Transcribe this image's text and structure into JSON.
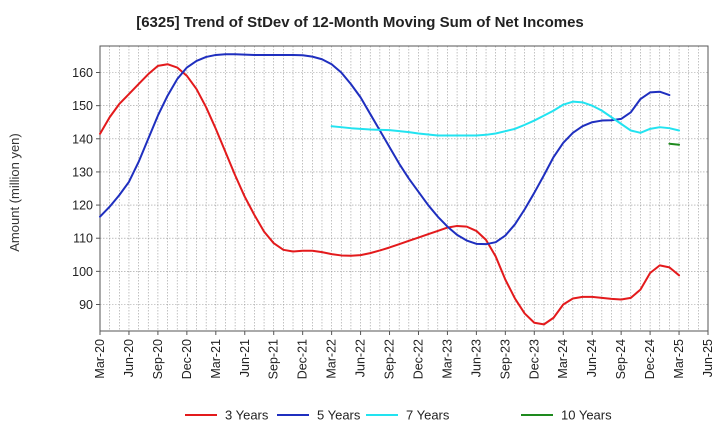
{
  "chart_data": {
    "type": "line",
    "title": "[6325]  Trend of StDev of 12-Month Moving Sum of Net Incomes",
    "ylabel": "Amount (million yen)",
    "xlabel": "",
    "ylim": [
      82,
      168
    ],
    "yticks": [
      90,
      100,
      110,
      120,
      130,
      140,
      150,
      160
    ],
    "x_start": "2020-03",
    "x_end": "2025-06",
    "xticks": [
      "Mar-20",
      "Jun-20",
      "Sep-20",
      "Dec-20",
      "Mar-21",
      "Jun-21",
      "Sep-21",
      "Dec-21",
      "Mar-22",
      "Jun-22",
      "Sep-22",
      "Dec-22",
      "Mar-23",
      "Jun-23",
      "Sep-23",
      "Dec-23",
      "Mar-24",
      "Jun-24",
      "Sep-24",
      "Dec-24",
      "Mar-25",
      "Jun-25"
    ],
    "grid": true,
    "legend_position": "bottom",
    "series": [
      {
        "name": "3 Years",
        "color": "#e31a1c",
        "x": [
          "2020-03",
          "2020-04",
          "2020-05",
          "2020-06",
          "2020-07",
          "2020-08",
          "2020-09",
          "2020-10",
          "2020-11",
          "2020-12",
          "2021-01",
          "2021-02",
          "2021-03",
          "2021-04",
          "2021-05",
          "2021-06",
          "2021-07",
          "2021-08",
          "2021-09",
          "2021-10",
          "2021-11",
          "2021-12",
          "2022-01",
          "2022-02",
          "2022-03",
          "2022-04",
          "2022-05",
          "2022-06",
          "2022-07",
          "2022-08",
          "2022-09",
          "2022-10",
          "2022-11",
          "2022-12",
          "2023-01",
          "2023-02",
          "2023-03",
          "2023-04",
          "2023-05",
          "2023-06",
          "2023-07",
          "2023-08",
          "2023-09",
          "2023-10",
          "2023-11",
          "2023-12",
          "2024-01",
          "2024-02",
          "2024-03",
          "2024-04",
          "2024-05",
          "2024-06",
          "2024-07",
          "2024-08",
          "2024-09",
          "2024-10",
          "2024-11",
          "2024-12",
          "2025-01",
          "2025-02",
          "2025-03"
        ],
        "values": [
          141.5,
          146.5,
          150.5,
          153.5,
          156.5,
          159.5,
          162.0,
          162.5,
          161.5,
          159.0,
          155.0,
          149.5,
          143.0,
          136.0,
          129.0,
          122.5,
          117.0,
          112.0,
          108.5,
          106.5,
          106.0,
          106.2,
          106.2,
          105.8,
          105.2,
          104.8,
          104.7,
          104.9,
          105.5,
          106.3,
          107.2,
          108.2,
          109.2,
          110.2,
          111.2,
          112.2,
          113.2,
          113.7,
          113.5,
          112.2,
          109.5,
          104.5,
          97.5,
          91.8,
          87.3,
          84.5,
          84.0,
          86.0,
          90.0,
          91.8,
          92.3,
          92.3,
          92.0,
          91.7,
          91.5,
          92.0,
          94.5,
          99.5,
          101.8,
          101.2,
          98.8
        ]
      },
      {
        "name": "5 Years",
        "color": "#1f2fbf",
        "x": [
          "2020-03",
          "2020-04",
          "2020-05",
          "2020-06",
          "2020-07",
          "2020-08",
          "2020-09",
          "2020-10",
          "2020-11",
          "2020-12",
          "2021-01",
          "2021-02",
          "2021-03",
          "2021-04",
          "2021-05",
          "2021-06",
          "2021-07",
          "2021-08",
          "2021-09",
          "2021-10",
          "2021-11",
          "2021-12",
          "2022-01",
          "2022-02",
          "2022-03",
          "2022-04",
          "2022-05",
          "2022-06",
          "2022-07",
          "2022-08",
          "2022-09",
          "2022-10",
          "2022-11",
          "2022-12",
          "2023-01",
          "2023-02",
          "2023-03",
          "2023-04",
          "2023-05",
          "2023-06",
          "2023-07",
          "2023-08",
          "2023-09",
          "2023-10",
          "2023-11",
          "2023-12",
          "2024-01",
          "2024-02",
          "2024-03",
          "2024-04",
          "2024-05",
          "2024-06",
          "2024-07",
          "2024-08",
          "2024-09",
          "2024-10",
          "2024-11",
          "2024-12",
          "2025-01",
          "2025-02",
          "2025-03"
        ],
        "values": [
          116.5,
          119.5,
          123.0,
          127.0,
          133.0,
          140.0,
          147.0,
          153.0,
          158.0,
          161.5,
          163.5,
          164.7,
          165.3,
          165.5,
          165.5,
          165.4,
          165.3,
          165.3,
          165.3,
          165.3,
          165.3,
          165.2,
          164.8,
          164.0,
          162.5,
          160.0,
          156.5,
          152.5,
          147.5,
          142.5,
          137.5,
          132.5,
          128.0,
          124.0,
          120.0,
          116.5,
          113.5,
          111.0,
          109.3,
          108.3,
          108.2,
          108.8,
          110.8,
          114.2,
          118.7,
          123.7,
          129.0,
          134.5,
          138.8,
          141.8,
          143.8,
          145.0,
          145.5,
          145.6,
          146.0,
          148.0,
          152.0,
          154.0,
          154.2,
          153.2,
          null
        ]
      },
      {
        "name": "7 Years",
        "color": "#22e3f0",
        "x": [
          "2022-03",
          "2022-04",
          "2022-05",
          "2022-06",
          "2022-07",
          "2022-08",
          "2022-09",
          "2022-10",
          "2022-11",
          "2022-12",
          "2023-01",
          "2023-02",
          "2023-03",
          "2023-04",
          "2023-05",
          "2023-06",
          "2023-07",
          "2023-08",
          "2023-09",
          "2023-10",
          "2023-11",
          "2023-12",
          "2024-01",
          "2024-02",
          "2024-03",
          "2024-04",
          "2024-05",
          "2024-06",
          "2024-07",
          "2024-08",
          "2024-09",
          "2024-10",
          "2024-11",
          "2024-12",
          "2025-01",
          "2025-02",
          "2025-03"
        ],
        "values": [
          143.8,
          143.5,
          143.2,
          143.0,
          142.8,
          142.7,
          142.6,
          142.3,
          142.0,
          141.6,
          141.3,
          141.0,
          141.0,
          141.0,
          141.0,
          141.0,
          141.2,
          141.6,
          142.3,
          143.0,
          144.2,
          145.5,
          147.0,
          148.5,
          150.3,
          151.2,
          151.0,
          150.0,
          148.5,
          146.5,
          144.5,
          142.5,
          141.8,
          143.0,
          143.5,
          143.2,
          142.5
        ]
      },
      {
        "name": "10 Years",
        "color": "#1e8a1e",
        "x": [
          "2025-02",
          "2025-03"
        ],
        "values": [
          138.5,
          138.2
        ]
      }
    ]
  }
}
